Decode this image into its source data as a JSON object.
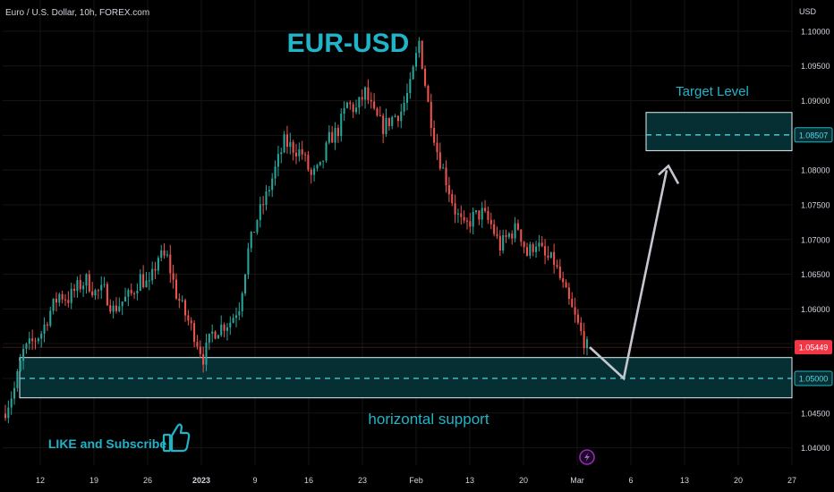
{
  "header": {
    "symbol": "Euro / U.S. Dollar, 10h, FOREX.com",
    "currency": "USD"
  },
  "annotations": {
    "title": "EUR-USD",
    "target_label": "Target Level",
    "support_label": "horizontal support",
    "like_text": "LIKE and Subscribe",
    "like_icon": "thumbs-up-icon",
    "event_icon": "lightning-icon"
  },
  "colors": {
    "up": "#26a69a",
    "down": "#ef5350",
    "accent": "#1fb4c8",
    "zone_fill": "#062f33",
    "zone_border": "#e0f3f3"
  },
  "chart_data": {
    "type": "candlestick",
    "timeframe": "10h",
    "y_axis": {
      "ylim": [
        1.0375,
        1.1045
      ],
      "ticks": [
        "1.10000",
        "1.09500",
        "1.09000",
        "1.08500",
        "1.08000",
        "1.07500",
        "1.07000",
        "1.06500",
        "1.06000",
        "1.05500",
        "1.05000",
        "1.04500",
        "1.04000"
      ]
    },
    "x_axis": {
      "ticks": [
        "12",
        "19",
        "26",
        "2023",
        "9",
        "16",
        "23",
        "Feb",
        "13",
        "20",
        "Mar",
        "6",
        "13",
        "20",
        "27"
      ]
    },
    "price_labels": [
      {
        "value": "1.05449",
        "kind": "last"
      },
      {
        "value": "1.05000",
        "kind": "support"
      },
      {
        "value": "1.08507",
        "kind": "target"
      }
    ],
    "zones": [
      {
        "name": "support",
        "low": 1.0472,
        "high": 1.053,
        "level": 1.05
      },
      {
        "name": "target",
        "low": 1.0828,
        "high": 1.0883,
        "level": 1.08507
      }
    ],
    "projection": [
      1.05449,
      1.05,
      1.081
    ],
    "close_path": [
      [
        0,
        1.0455
      ],
      [
        3,
        1.0485
      ],
      [
        6,
        1.0538
      ],
      [
        9,
        1.0552
      ],
      [
        12,
        1.0566
      ],
      [
        15,
        1.0597
      ],
      [
        18,
        1.0621
      ],
      [
        21,
        1.0615
      ],
      [
        24,
        1.0631
      ],
      [
        27,
        1.0641
      ],
      [
        30,
        1.0624
      ],
      [
        33,
        1.0626
      ],
      [
        36,
        1.0599
      ],
      [
        39,
        1.0611
      ],
      [
        42,
        1.0621
      ],
      [
        45,
        1.0645
      ],
      [
        48,
        1.0632
      ],
      [
        51,
        1.0676
      ],
      [
        54,
        1.0673
      ],
      [
        57,
        1.0622
      ],
      [
        60,
        1.0592
      ],
      [
        63,
        1.0564
      ],
      [
        66,
        1.053
      ],
      [
        69,
        1.0565
      ],
      [
        72,
        1.0575
      ],
      [
        75,
        1.0582
      ],
      [
        78,
        1.0605
      ],
      [
        81,
        1.0684
      ],
      [
        84,
        1.073
      ],
      [
        87,
        1.0762
      ],
      [
        90,
        1.0801
      ],
      [
        93,
        1.084
      ],
      [
        96,
        1.0832
      ],
      [
        99,
        1.0824
      ],
      [
        102,
        1.0791
      ],
      [
        105,
        1.0802
      ],
      [
        108,
        1.0844
      ],
      [
        111,
        1.0858
      ],
      [
        114,
        1.0895
      ],
      [
        117,
        1.0887
      ],
      [
        120,
        1.0912
      ],
      [
        123,
        1.0879
      ],
      [
        126,
        1.0862
      ],
      [
        129,
        1.0875
      ],
      [
        132,
        1.0885
      ],
      [
        135,
        1.092
      ],
      [
        138,
        1.0985
      ],
      [
        141,
        1.0895
      ],
      [
        144,
        1.0828
      ],
      [
        147,
        1.0786
      ],
      [
        150,
        1.0742
      ],
      [
        153,
        1.0716
      ],
      [
        156,
        1.0732
      ],
      [
        159,
        1.0738
      ],
      [
        162,
        1.0721
      ],
      [
        165,
        1.069
      ],
      [
        168,
        1.0707
      ],
      [
        171,
        1.0718
      ],
      [
        174,
        1.0679
      ],
      [
        177,
        1.0697
      ],
      [
        180,
        1.0674
      ],
      [
        183,
        1.0668
      ],
      [
        186,
        1.0631
      ],
      [
        189,
        1.0598
      ],
      [
        192,
        1.0565
      ],
      [
        194,
        1.0545
      ]
    ]
  }
}
